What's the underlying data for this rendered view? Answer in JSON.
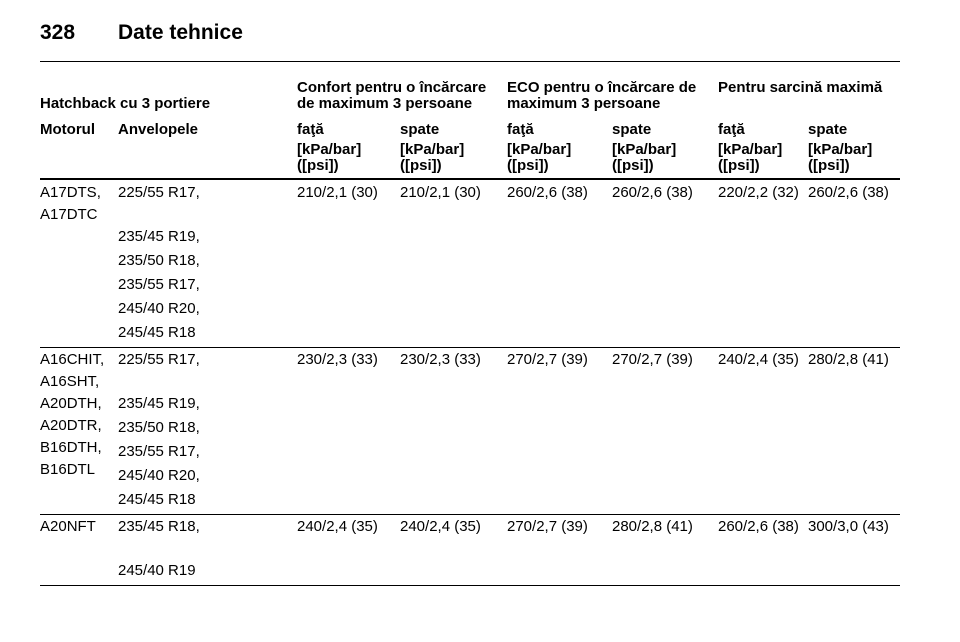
{
  "header": {
    "page_number": "328",
    "title": "Date tehnice"
  },
  "table": {
    "caption": "Hatchback cu 3 portiere",
    "groups": [
      "Confort pentru o încărcare de maximum 3 persoane",
      "ECO pentru o încărcare de maximum 3 persoane",
      "Pentru sarcină maximă"
    ],
    "columns": [
      "Motorul",
      "Anvelopele",
      "faţă",
      "spate",
      "faţă",
      "spate",
      "faţă",
      "spate"
    ],
    "units": [
      "[kPa/bar] ([psi])",
      "[kPa/bar] ([psi])",
      "[kPa/bar] ([psi])",
      "[kPa/bar] ([psi])",
      "[kPa/bar] ([psi])",
      "[kPa/bar] ([psi])"
    ],
    "rows": [
      {
        "engines": [
          "A17DTS,",
          "A17DTC"
        ],
        "tyres": [
          "225/55 R17,",
          "235/45 R19,",
          "235/50 R18,",
          "235/55 R17,",
          "245/40 R20,",
          "245/45 R18"
        ],
        "pressures": [
          "210/2,1 (30)",
          "210/2,1 (30)",
          "260/2,6 (38)",
          "260/2,6 (38)",
          "220/2,2 (32)",
          "260/2,6 (38)"
        ]
      },
      {
        "engines": [
          "A16CHIT,",
          "A16SHT,",
          "A20DTH,",
          "A20DTR,",
          "B16DTH,",
          "B16DTL"
        ],
        "tyres": [
          "225/55 R17,",
          "235/45 R19,",
          "235/50 R18,",
          "235/55 R17,",
          "245/40 R20,",
          "245/45 R18"
        ],
        "pressures": [
          "230/2,3 (33)",
          "230/2,3 (33)",
          "270/2,7 (39)",
          "270/2,7 (39)",
          "240/2,4 (35)",
          "280/2,8 (41)"
        ]
      },
      {
        "engines": [
          "A20NFT"
        ],
        "tyres": [
          "235/45 R18,",
          "245/40 R19"
        ],
        "pressures": [
          "240/2,4 (35)",
          "240/2,4 (35)",
          "270/2,7 (39)",
          "280/2,8 (41)",
          "260/2,6 (38)",
          "300/3,0 (43)"
        ]
      }
    ]
  }
}
